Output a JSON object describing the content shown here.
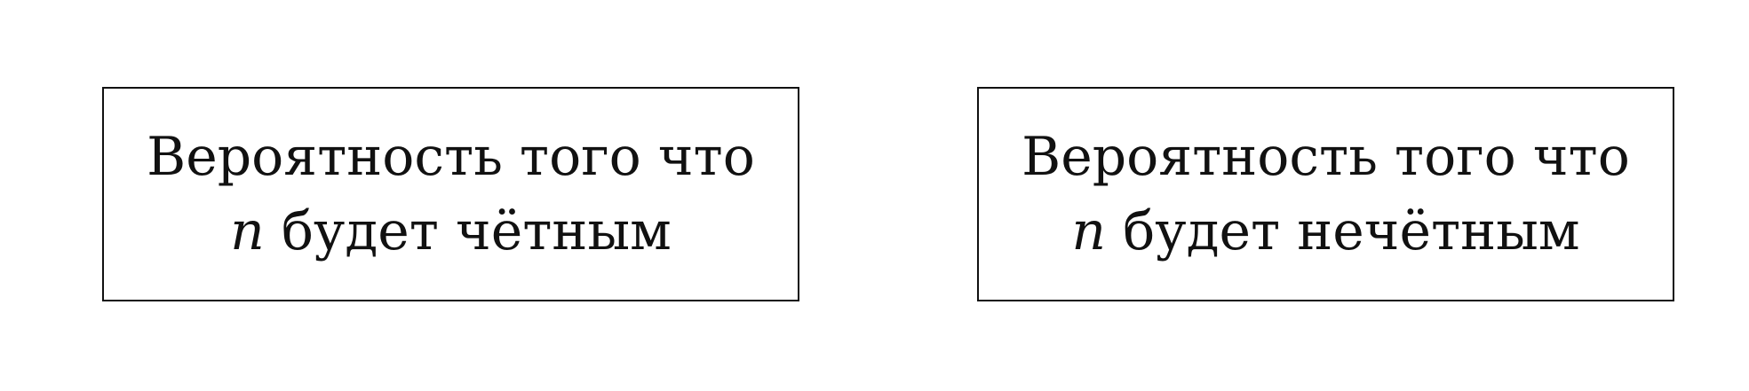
{
  "boxes": [
    {
      "line1": "Вероятность того что",
      "variable": "n",
      "line2_rest": " будет чётным"
    },
    {
      "line1": "Вероятность того что",
      "variable": "n",
      "line2_rest": " будет нечётным"
    }
  ]
}
